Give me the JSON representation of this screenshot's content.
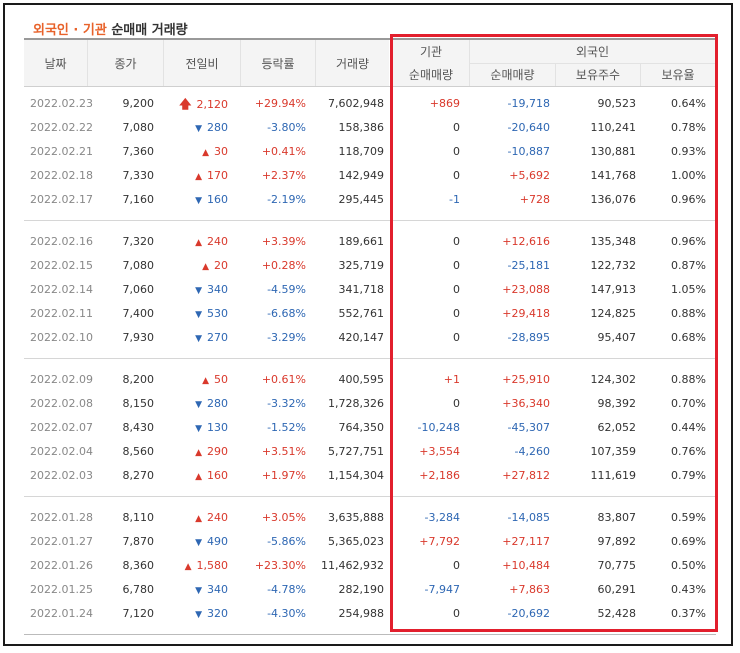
{
  "title": {
    "foreign": "외국인",
    "dot": " · ",
    "inst": "기관",
    "rest": " 순매매 거래량"
  },
  "header": {
    "date": "날짜",
    "close": "종가",
    "change": "전일비",
    "rate": "등락률",
    "volume": "거래량",
    "inst_group": "기관",
    "foreign_group": "외국인",
    "inst_net": "순매매량",
    "foreign_net": "순매매량",
    "holdings": "보유주수",
    "hold_ratio": "보유율"
  },
  "groups": [
    [
      {
        "date": "2022.02.23",
        "close": "9,200",
        "dir": "upper",
        "change": "2,120",
        "rate": "+29.94%",
        "volume": "7,602,948",
        "inst": "+869",
        "foreign": "-19,718",
        "holdings": "90,523",
        "ratio": "0.64%"
      },
      {
        "date": "2022.02.22",
        "close": "7,080",
        "dir": "down",
        "change": "280",
        "rate": "-3.80%",
        "volume": "158,386",
        "inst": "0",
        "foreign": "-20,640",
        "holdings": "110,241",
        "ratio": "0.78%"
      },
      {
        "date": "2022.02.21",
        "close": "7,360",
        "dir": "up",
        "change": "30",
        "rate": "+0.41%",
        "volume": "118,709",
        "inst": "0",
        "foreign": "-10,887",
        "holdings": "130,881",
        "ratio": "0.93%"
      },
      {
        "date": "2022.02.18",
        "close": "7,330",
        "dir": "up",
        "change": "170",
        "rate": "+2.37%",
        "volume": "142,949",
        "inst": "0",
        "foreign": "+5,692",
        "holdings": "141,768",
        "ratio": "1.00%"
      },
      {
        "date": "2022.02.17",
        "close": "7,160",
        "dir": "down",
        "change": "160",
        "rate": "-2.19%",
        "volume": "295,445",
        "inst": "-1",
        "foreign": "+728",
        "holdings": "136,076",
        "ratio": "0.96%"
      }
    ],
    [
      {
        "date": "2022.02.16",
        "close": "7,320",
        "dir": "up",
        "change": "240",
        "rate": "+3.39%",
        "volume": "189,661",
        "inst": "0",
        "foreign": "+12,616",
        "holdings": "135,348",
        "ratio": "0.96%"
      },
      {
        "date": "2022.02.15",
        "close": "7,080",
        "dir": "up",
        "change": "20",
        "rate": "+0.28%",
        "volume": "325,719",
        "inst": "0",
        "foreign": "-25,181",
        "holdings": "122,732",
        "ratio": "0.87%"
      },
      {
        "date": "2022.02.14",
        "close": "7,060",
        "dir": "down",
        "change": "340",
        "rate": "-4.59%",
        "volume": "341,718",
        "inst": "0",
        "foreign": "+23,088",
        "holdings": "147,913",
        "ratio": "1.05%"
      },
      {
        "date": "2022.02.11",
        "close": "7,400",
        "dir": "down",
        "change": "530",
        "rate": "-6.68%",
        "volume": "552,761",
        "inst": "0",
        "foreign": "+29,418",
        "holdings": "124,825",
        "ratio": "0.88%"
      },
      {
        "date": "2022.02.10",
        "close": "7,930",
        "dir": "down",
        "change": "270",
        "rate": "-3.29%",
        "volume": "420,147",
        "inst": "0",
        "foreign": "-28,895",
        "holdings": "95,407",
        "ratio": "0.68%"
      }
    ],
    [
      {
        "date": "2022.02.09",
        "close": "8,200",
        "dir": "up",
        "change": "50",
        "rate": "+0.61%",
        "volume": "400,595",
        "inst": "+1",
        "foreign": "+25,910",
        "holdings": "124,302",
        "ratio": "0.88%"
      },
      {
        "date": "2022.02.08",
        "close": "8,150",
        "dir": "down",
        "change": "280",
        "rate": "-3.32%",
        "volume": "1,728,326",
        "inst": "0",
        "foreign": "+36,340",
        "holdings": "98,392",
        "ratio": "0.70%"
      },
      {
        "date": "2022.02.07",
        "close": "8,430",
        "dir": "down",
        "change": "130",
        "rate": "-1.52%",
        "volume": "764,350",
        "inst": "-10,248",
        "foreign": "-45,307",
        "holdings": "62,052",
        "ratio": "0.44%"
      },
      {
        "date": "2022.02.04",
        "close": "8,560",
        "dir": "up",
        "change": "290",
        "rate": "+3.51%",
        "volume": "5,727,751",
        "inst": "+3,554",
        "foreign": "-4,260",
        "holdings": "107,359",
        "ratio": "0.76%"
      },
      {
        "date": "2022.02.03",
        "close": "8,270",
        "dir": "up",
        "change": "160",
        "rate": "+1.97%",
        "volume": "1,154,304",
        "inst": "+2,186",
        "foreign": "+27,812",
        "holdings": "111,619",
        "ratio": "0.79%"
      }
    ],
    [
      {
        "date": "2022.01.28",
        "close": "8,110",
        "dir": "up",
        "change": "240",
        "rate": "+3.05%",
        "volume": "3,635,888",
        "inst": "-3,284",
        "foreign": "-14,085",
        "holdings": "83,807",
        "ratio": "0.59%"
      },
      {
        "date": "2022.01.27",
        "close": "7,870",
        "dir": "down",
        "change": "490",
        "rate": "-5.86%",
        "volume": "5,365,023",
        "inst": "+7,792",
        "foreign": "+27,117",
        "holdings": "97,892",
        "ratio": "0.69%"
      },
      {
        "date": "2022.01.26",
        "close": "8,360",
        "dir": "up",
        "change": "1,580",
        "rate": "+23.30%",
        "volume": "11,462,932",
        "inst": "0",
        "foreign": "+10,484",
        "holdings": "70,775",
        "ratio": "0.50%"
      },
      {
        "date": "2022.01.25",
        "close": "6,780",
        "dir": "down",
        "change": "340",
        "rate": "-4.78%",
        "volume": "282,190",
        "inst": "-7,947",
        "foreign": "+7,863",
        "holdings": "60,291",
        "ratio": "0.43%"
      },
      {
        "date": "2022.01.24",
        "close": "7,120",
        "dir": "down",
        "change": "320",
        "rate": "-4.30%",
        "volume": "254,988",
        "inst": "0",
        "foreign": "-20,692",
        "holdings": "52,428",
        "ratio": "0.37%"
      }
    ]
  ],
  "icons": {
    "upper": "upper-limit-arrow-icon",
    "up": "up-triangle-icon",
    "down": "down-triangle-icon"
  },
  "colors": {
    "up": "#d9392c",
    "down": "#2e67b3",
    "highlight_box": "#e21f2d",
    "title_accent": "#e8622a"
  }
}
